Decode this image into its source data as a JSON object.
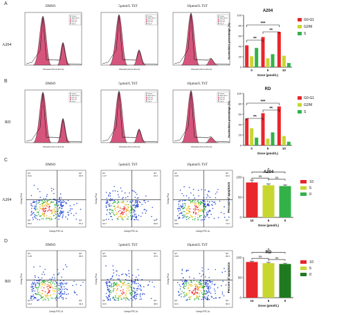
{
  "panel_letters": [
    "A",
    "B",
    "C",
    "D"
  ],
  "row_labels": {
    "a": "A204",
    "b": "RD",
    "c": "A204",
    "d": "RD"
  },
  "column_labels": [
    "DMSO",
    "5µmol/L TST",
    "10µmol/L TST"
  ],
  "histogram": {
    "legend": [
      "Debris",
      "Aggregates",
      "Dip G1",
      "Dip G2",
      "Dip S"
    ],
    "xlabel": "Channels (FL2-A-FL2-A)"
  },
  "flow": {
    "xlabel": "Comp-FITC-A",
    "ylabel": "Comp-PI-A",
    "quadrant_names": [
      "Q1",
      "Q2",
      "Q3",
      "Q4"
    ],
    "panels": {
      "c": [
        {
          "q1": "0.41",
          "q2": "16.5",
          "q3": "57.2",
          "q4": "25.9"
        },
        {
          "q1": "1.17",
          "q2": "16.3",
          "q3": "62.8",
          "q4": "19.7"
        },
        {
          "q1": "0.45",
          "q2": "16.9",
          "q3": "71.6",
          "q4": "9.91"
        }
      ],
      "d": [
        {
          "q1": "1.40",
          "q2": "30.6",
          "q3": "44.3",
          "q4": "14.0"
        },
        {
          "q1": "0.95",
          "q2": "37.6",
          "q3": "46.6",
          "q4": "13.6"
        },
        {
          "q1": "0.26",
          "q2": "29.3",
          "q3": "60.3",
          "q4": "10.1"
        }
      ]
    }
  },
  "colors": {
    "red": "#e8262b",
    "yellow": "#c8d630",
    "green_a": "#33b24a",
    "green_d": "#1f7a1f",
    "hist_fill": "#d6557c",
    "scatter_blue": "#2b4fd6"
  },
  "chart_data": [
    {
      "type": "bar",
      "title": "A204",
      "xlabel": "Dose (µmol/L)",
      "ylabel": "Nucleotides percentage (%)",
      "categories": [
        "0",
        "5",
        "10"
      ],
      "ylim": [
        0,
        100
      ],
      "yticks": [
        "0",
        "20",
        "40",
        "60",
        "80",
        "100"
      ],
      "series": [
        {
          "name": "G0-G1",
          "values": [
            42,
            58,
            68
          ]
        },
        {
          "name": "G2/M",
          "values": [
            21,
            17,
            22
          ]
        },
        {
          "name": "S",
          "values": [
            37,
            25,
            8
          ]
        }
      ],
      "significance": [
        "**",
        "***",
        "**"
      ],
      "legend_position": "right"
    },
    {
      "type": "bar",
      "title": "RD",
      "xlabel": "Dose (µmol/L)",
      "ylabel": "Nucleotides percentage (%)",
      "categories": [
        "0",
        "5",
        "10"
      ],
      "ylim": [
        0,
        100
      ],
      "yticks": [
        "0",
        "20",
        "40",
        "60",
        "80",
        "100"
      ],
      "series": [
        {
          "name": "G0-G1",
          "values": [
            52,
            62,
            75
          ]
        },
        {
          "name": "G2/M",
          "values": [
            33,
            13,
            18
          ]
        },
        {
          "name": "S",
          "values": [
            15,
            25,
            7
          ]
        }
      ],
      "significance": [
        "**",
        "***",
        "**"
      ],
      "legend_position": "right"
    },
    {
      "type": "bar",
      "title": "A204",
      "xlabel": "Dose (µmol/L)",
      "ylabel": "Percent of apoptosis",
      "categories": [
        "10",
        "5",
        "0"
      ],
      "ylim": [
        0,
        100
      ],
      "yticks": [
        "0",
        "50",
        "100"
      ],
      "values": [
        87,
        80,
        78
      ],
      "errors": [
        6,
        3,
        3
      ],
      "legend": [
        "10",
        "5",
        "0"
      ],
      "significance": [
        "ns",
        "ns",
        "*"
      ],
      "legend_position": "right"
    },
    {
      "type": "bar",
      "title": "RD",
      "xlabel": "Dose (µmol/L)",
      "ylabel": "Percent of apoptosis",
      "categories": [
        "10",
        "5",
        "0"
      ],
      "ylim": [
        0,
        100
      ],
      "yticks": [
        "0",
        "50",
        "100"
      ],
      "values": [
        89,
        86,
        84
      ],
      "errors": [
        2,
        2,
        2
      ],
      "legend": [
        "10",
        "5",
        "0"
      ],
      "significance": [
        "ns",
        "ns",
        "*"
      ],
      "legend_position": "right"
    }
  ]
}
